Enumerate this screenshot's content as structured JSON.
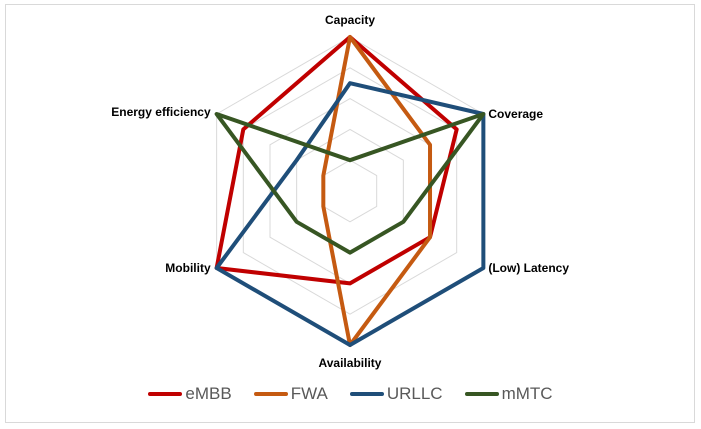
{
  "chart_data": {
    "type": "radar",
    "title": "",
    "axes": [
      "Capacity",
      "Coverage",
      "(Low) Latency",
      "Availability",
      "Mobility",
      "Energy efficiency"
    ],
    "range": [
      0,
      5
    ],
    "grid_levels": 5,
    "legend_position": "bottom",
    "series": [
      {
        "name": "eMBB",
        "color": "#C00000",
        "values": [
          5,
          4,
          3,
          3,
          5,
          4
        ]
      },
      {
        "name": "FWA",
        "color": "#C55A11",
        "values": [
          5,
          3,
          3,
          5,
          1,
          1
        ]
      },
      {
        "name": "URLLC",
        "color": "#1F4E79",
        "values": [
          3.5,
          5,
          5,
          5,
          5,
          2
        ]
      },
      {
        "name": "mMTC",
        "color": "#375623",
        "values": [
          1,
          5,
          2,
          2,
          2,
          5
        ]
      }
    ]
  },
  "legend": [
    {
      "label": "eMBB",
      "color": "#C00000"
    },
    {
      "label": "FWA",
      "color": "#C55A11"
    },
    {
      "label": "URLLC",
      "color": "#1F4E79"
    },
    {
      "label": "mMTC",
      "color": "#375623"
    }
  ]
}
